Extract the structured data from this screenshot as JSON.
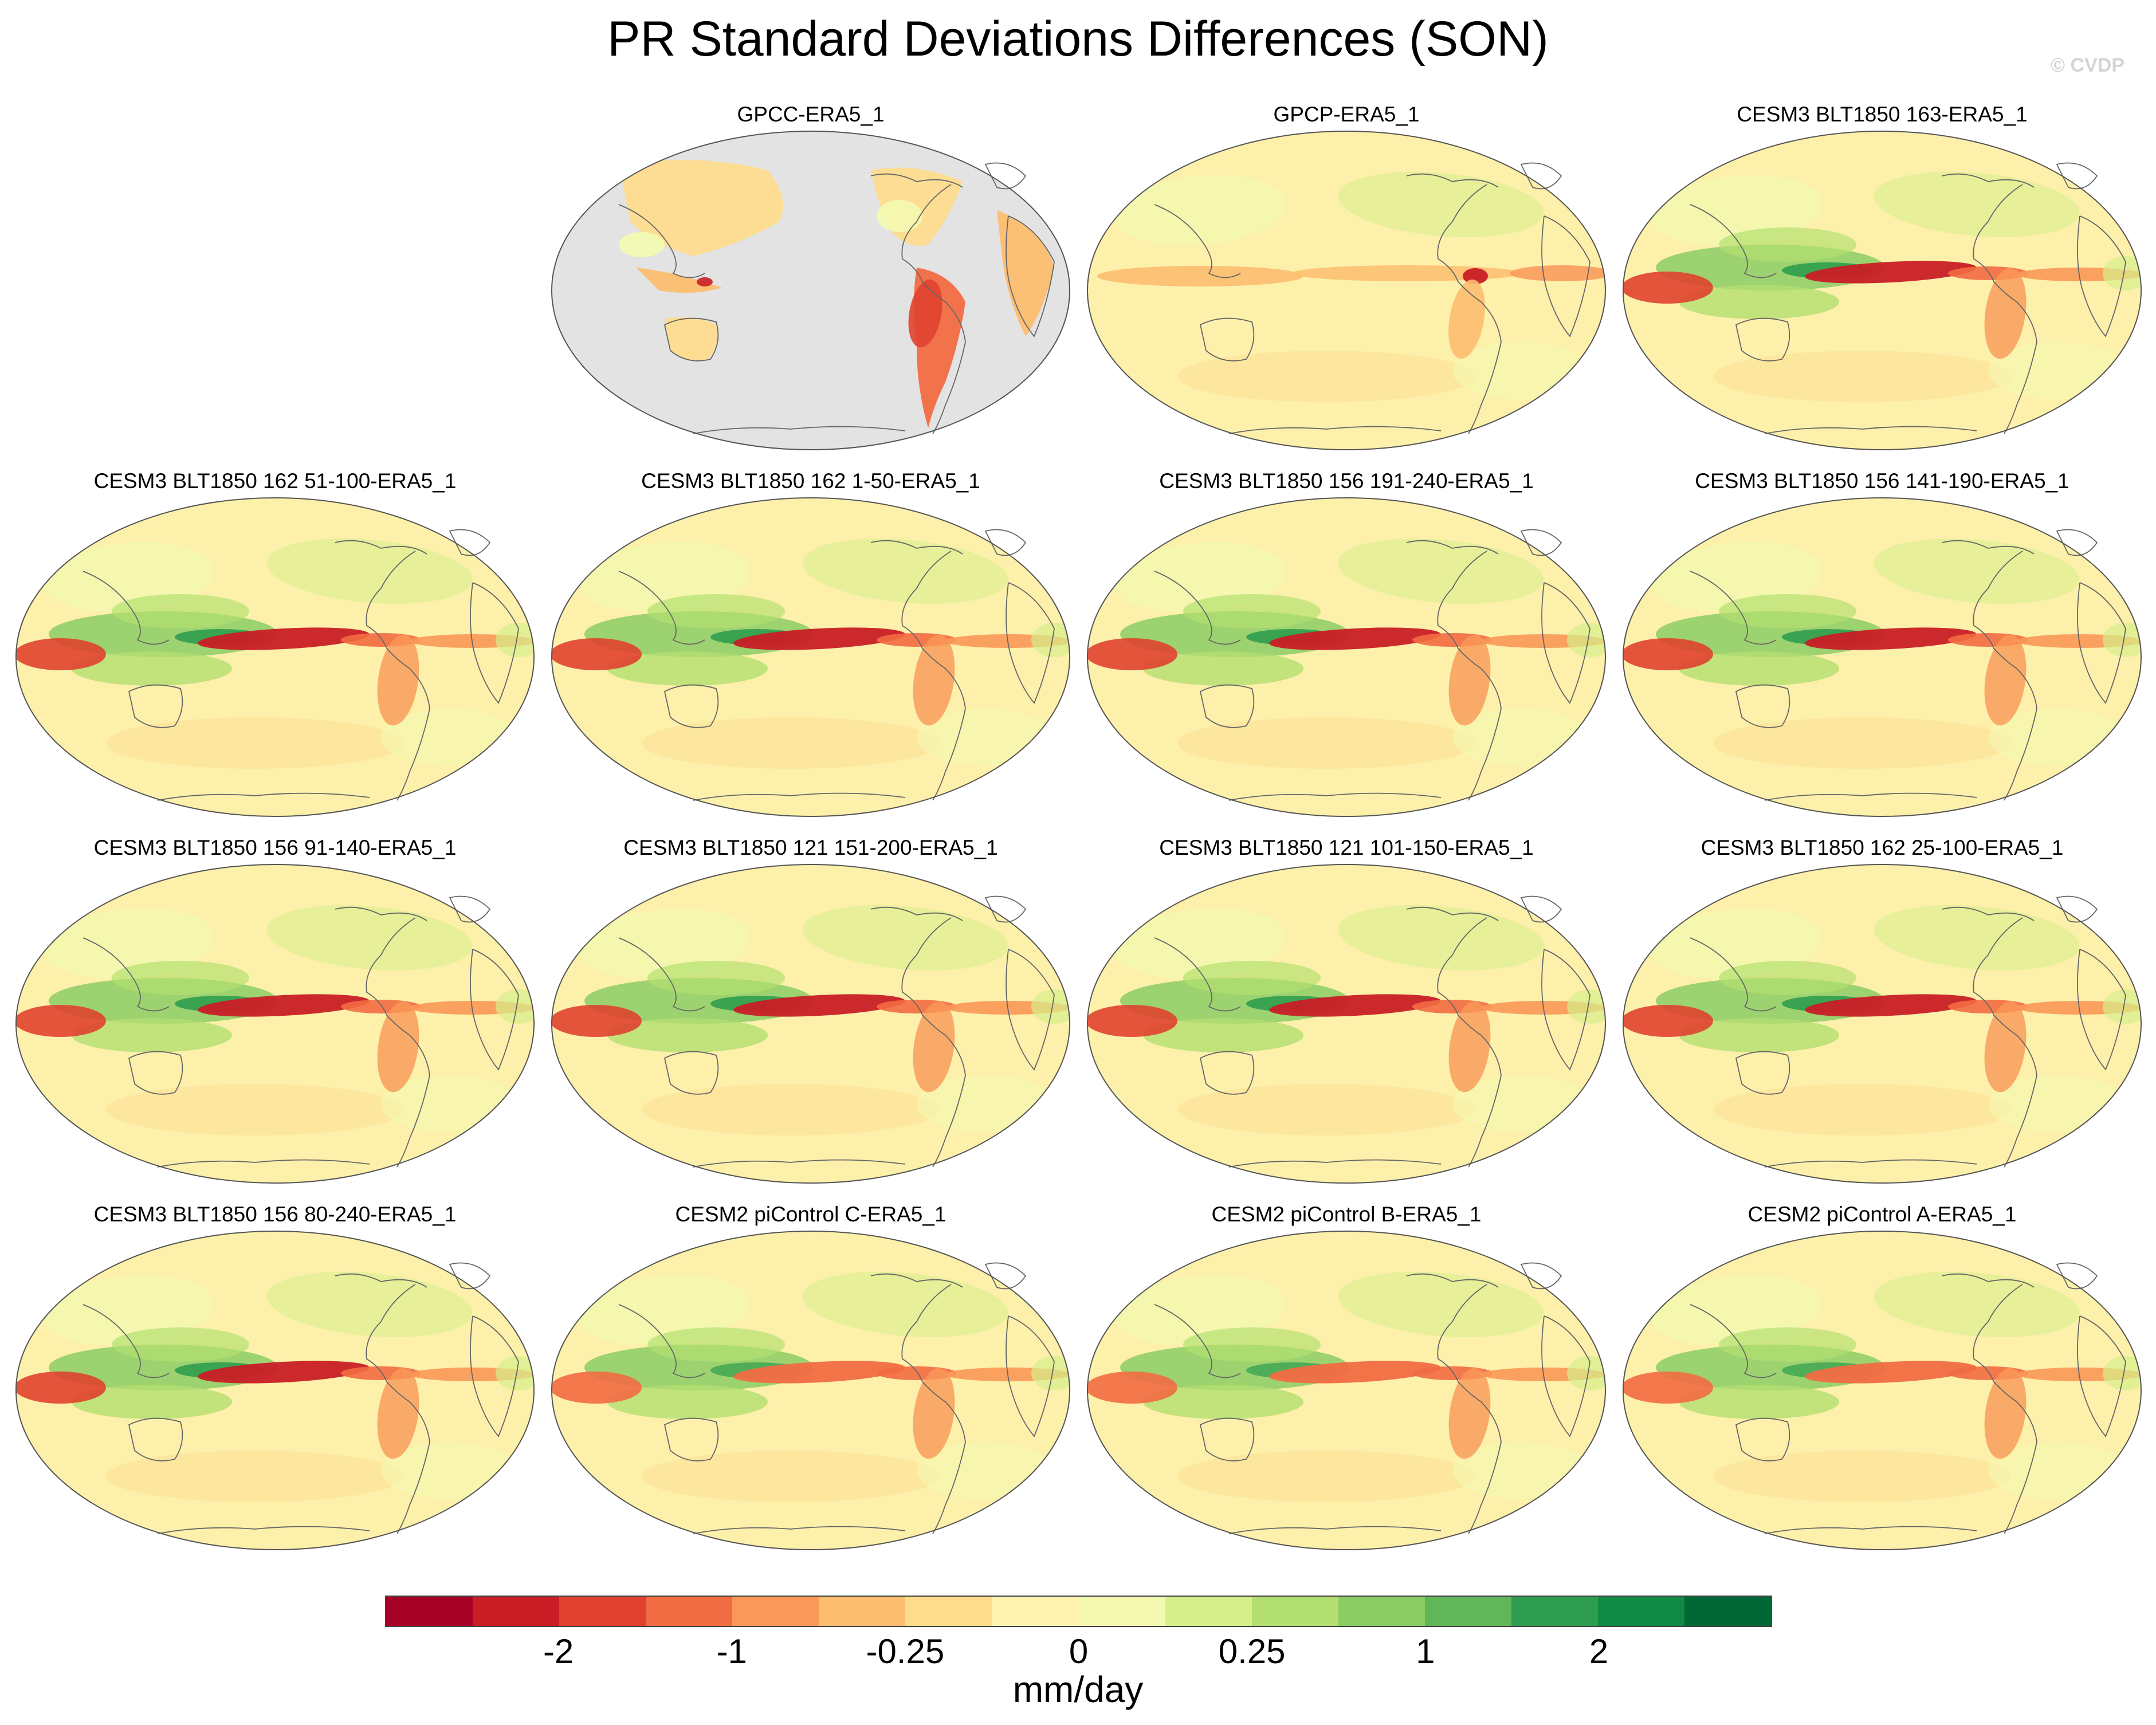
{
  "title": "PR Standard Deviations Differences (SON)",
  "copyright": "© CVDP",
  "panels": [
    {
      "title": "GPCC-ERA5_1",
      "style": "land"
    },
    {
      "title": "GPCP-ERA5_1",
      "style": "obs"
    },
    {
      "title": "CESM3 BLT1850 163-ERA5_1",
      "style": "model"
    },
    {
      "title": "CESM3 BLT1850 162 51-100-ERA5_1",
      "style": "model"
    },
    {
      "title": "CESM3 BLT1850 162 1-50-ERA5_1",
      "style": "model"
    },
    {
      "title": "CESM3 BLT1850 156 191-240-ERA5_1",
      "style": "model"
    },
    {
      "title": "CESM3 BLT1850 156 141-190-ERA5_1",
      "style": "model"
    },
    {
      "title": "CESM3 BLT1850 156 91-140-ERA5_1",
      "style": "model"
    },
    {
      "title": "CESM3 BLT1850 121 151-200-ERA5_1",
      "style": "model"
    },
    {
      "title": "CESM3 BLT1850 121 101-150-ERA5_1",
      "style": "model"
    },
    {
      "title": "CESM3 BLT1850 162 25-100-ERA5_1",
      "style": "model"
    },
    {
      "title": "CESM3 BLT1850 156 80-240-ERA5_1",
      "style": "model"
    },
    {
      "title": "CESM2 piControl C-ERA5_1",
      "style": "cesm2"
    },
    {
      "title": "CESM2 piControl B-ERA5_1",
      "style": "cesm2"
    },
    {
      "title": "CESM2 piControl A-ERA5_1",
      "style": "cesm2"
    }
  ],
  "colorbar": {
    "colors": [
      "#a50026",
      "#c91e26",
      "#e0422f",
      "#f26c43",
      "#f99858",
      "#fcbd6f",
      "#fddc8e",
      "#fef3b0",
      "#f3f9b0",
      "#d6ee8a",
      "#b3df70",
      "#8bcc64",
      "#60b75a",
      "#2f9d4f",
      "#108a44",
      "#006837"
    ],
    "tick_labels": [
      "-2",
      "-1",
      "-0.25",
      "0",
      "0.25",
      "1",
      "2"
    ],
    "units": "mm/day"
  },
  "legend_colors": {
    "background_field": "#fdf0ab",
    "missing_ocean": "#e3e3e3",
    "coastline": "#666666"
  }
}
